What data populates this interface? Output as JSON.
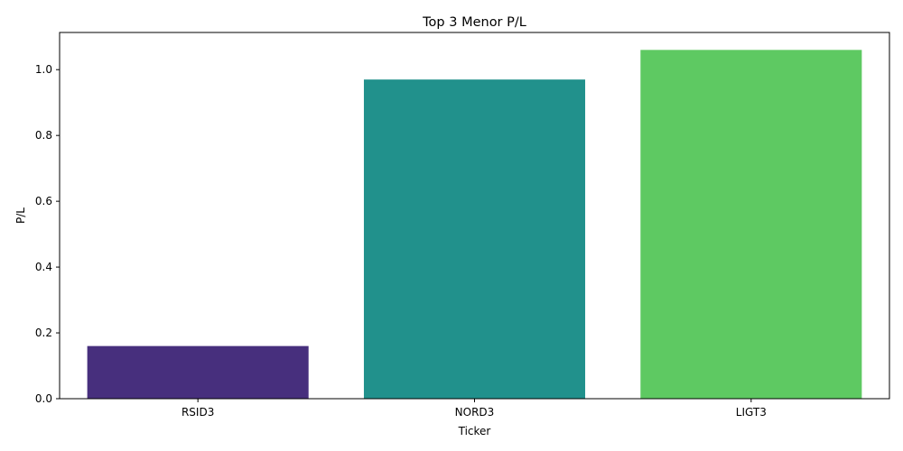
{
  "chart_data": {
    "type": "bar",
    "title": "Top 3 Menor P/L",
    "xlabel": "Ticker",
    "ylabel": "P/L",
    "categories": [
      "RSID3",
      "NORD3",
      "LIGT3"
    ],
    "values": [
      0.16,
      0.97,
      1.06
    ],
    "colors": [
      "#472f7d",
      "#21918c",
      "#5ec962"
    ],
    "ylim": [
      0,
      1.113
    ],
    "yticks": [
      0.0,
      0.2,
      0.4,
      0.6,
      0.8,
      1.0
    ],
    "ytick_labels": [
      "0.0",
      "0.2",
      "0.4",
      "0.6",
      "0.8",
      "1.0"
    ],
    "grid": false,
    "legend": null
  }
}
